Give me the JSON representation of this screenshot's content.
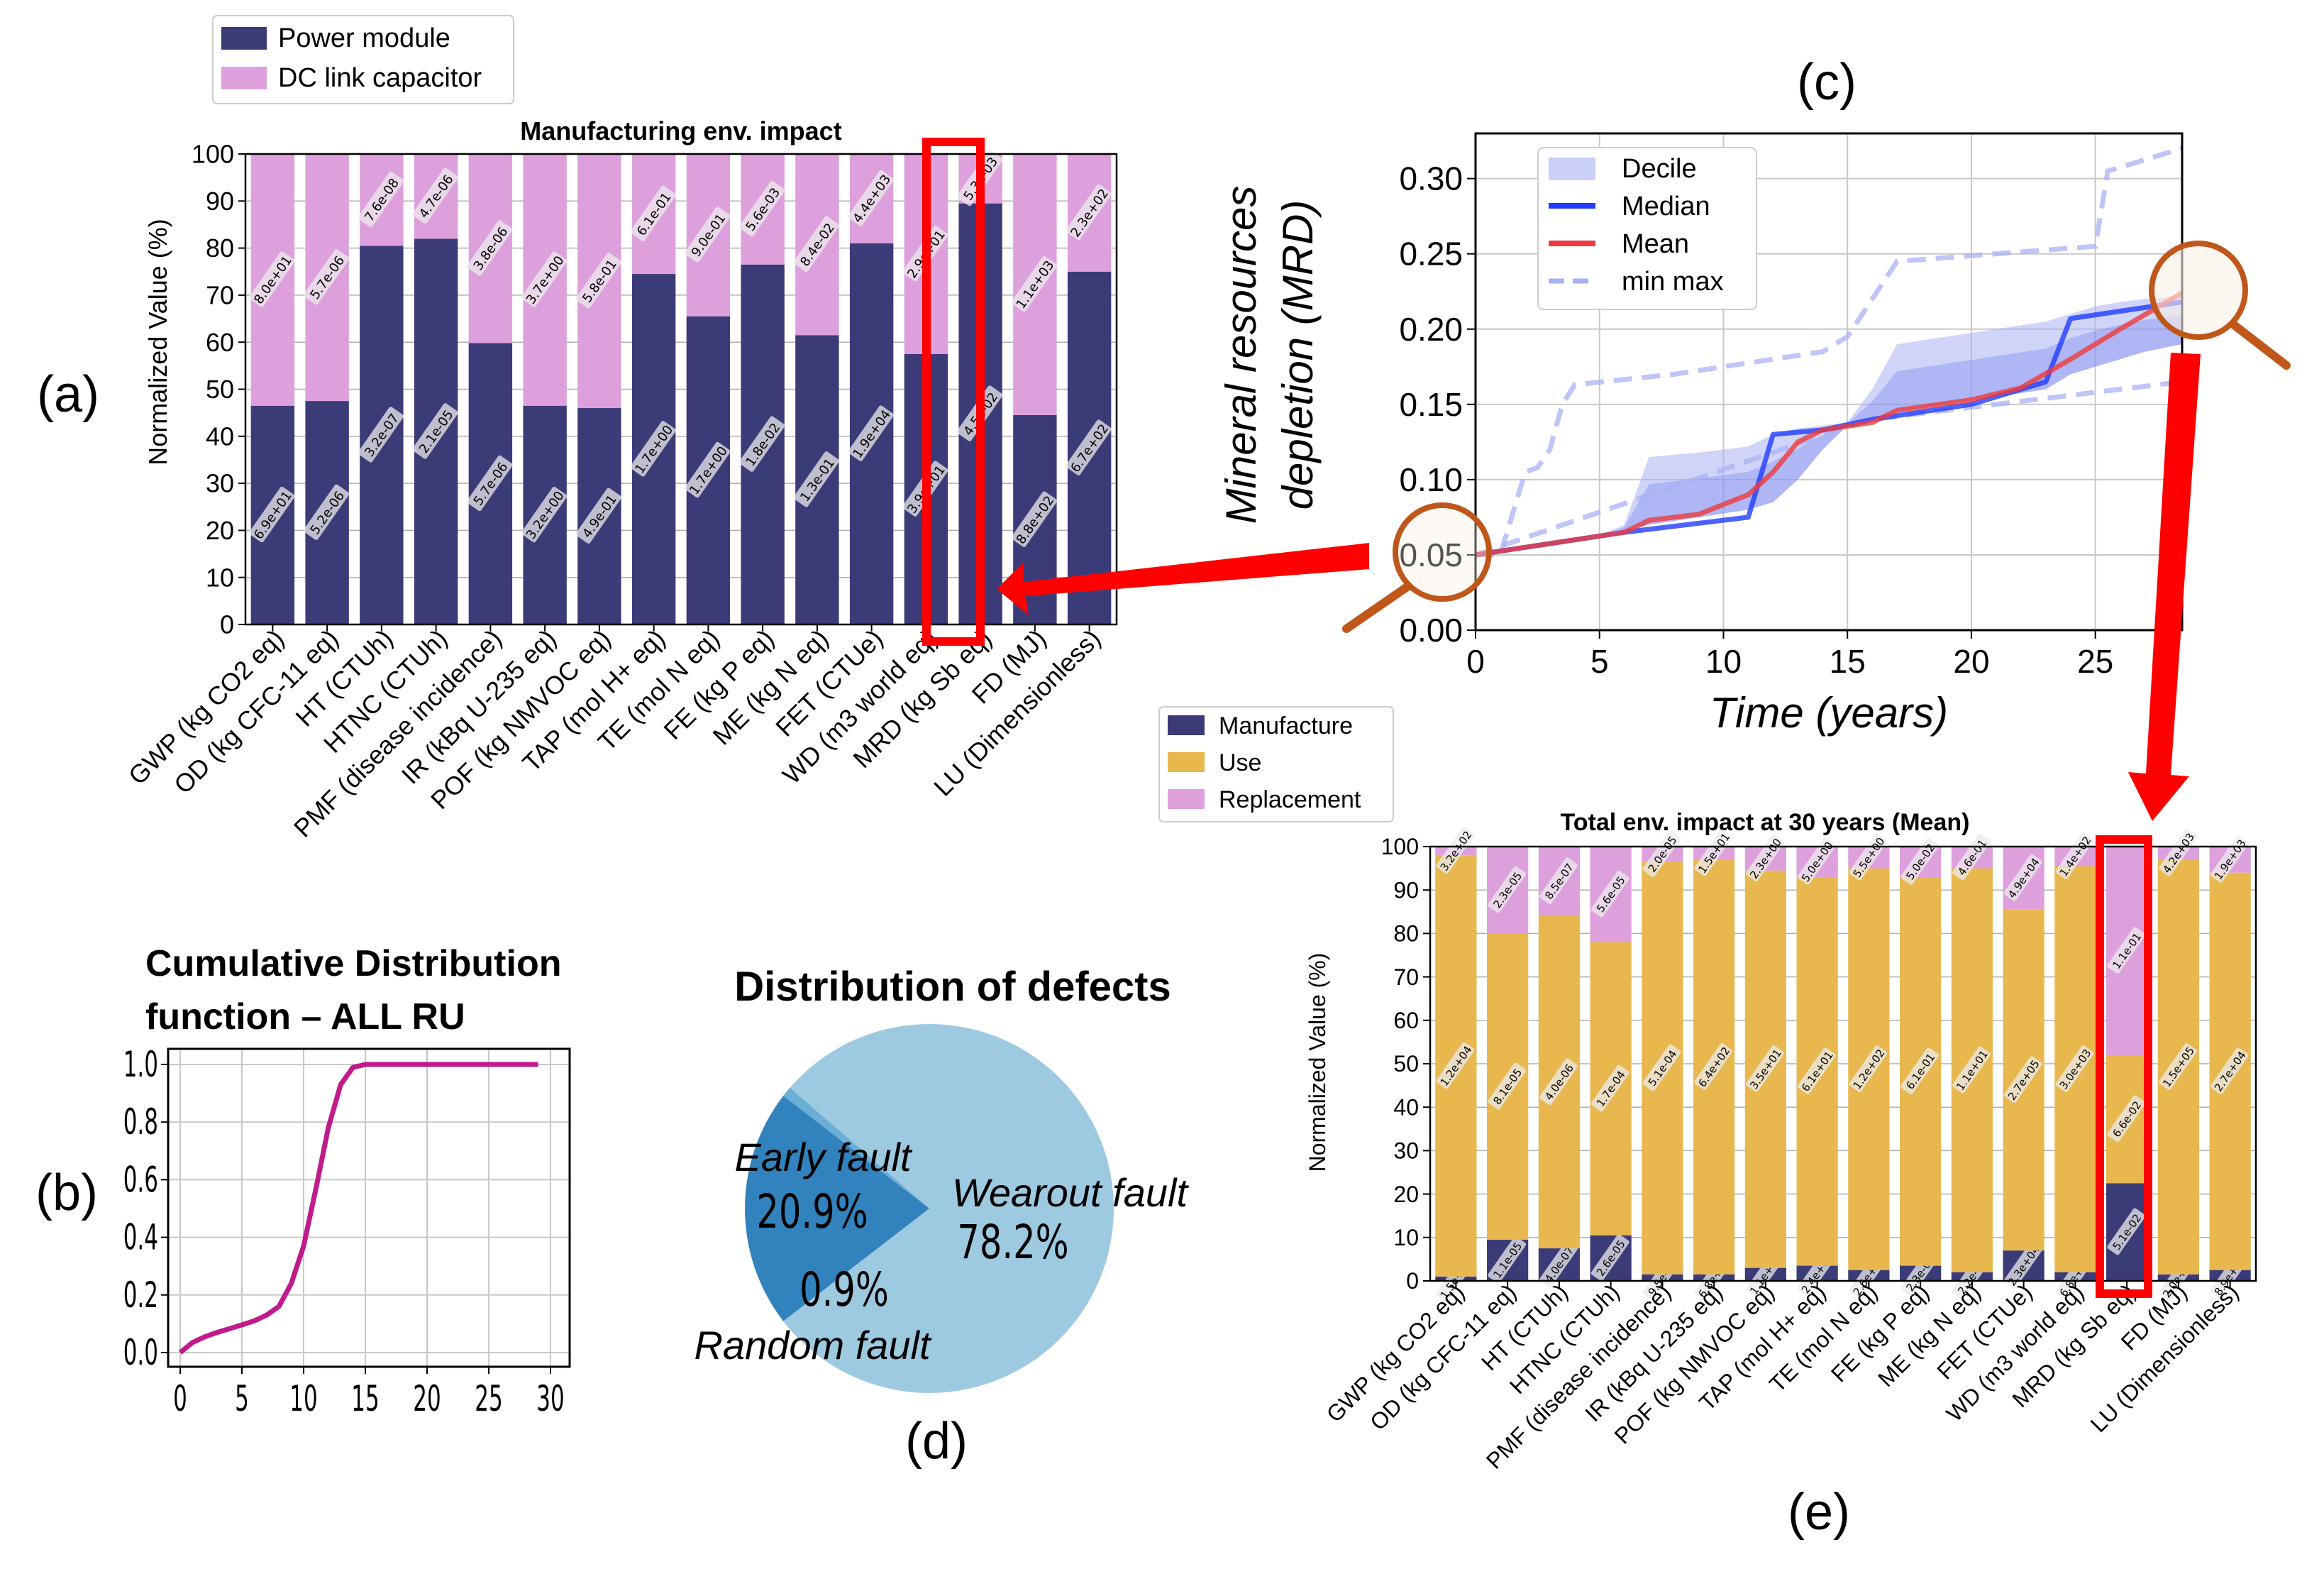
{
  "panel_labels": {
    "a": "(a)",
    "b": "(b)",
    "c": "(c)",
    "d": "(d)",
    "e": "(e)"
  },
  "colors": {
    "navy": "#3b3b78",
    "pink": "#dda0dd",
    "yellow": "#e8b84f",
    "blue": "#1f3cff",
    "red": "#ee3b3b",
    "decile": "#a9b1f4",
    "magenta": "#c01a8c",
    "pie_light": "#9ecae1",
    "pie_dark": "#3182bd",
    "highlight_red": "#ff0000",
    "magnifier": "#c0571a"
  },
  "chart_data": [
    {
      "id": "a",
      "type": "bar",
      "stacked": true,
      "title": "Manufacturing env. impact",
      "ylabel": "Normalized Value (%)",
      "ylim": [
        0,
        100
      ],
      "yticks": [
        0,
        10,
        20,
        30,
        40,
        50,
        60,
        70,
        80,
        90,
        100
      ],
      "grid": true,
      "legend_position": "top-left (outside plot)",
      "categories": [
        "GWP (kg CO2 eq)",
        "OD (kg CFC-11 eq)",
        "HT (CTUh)",
        "HTNC (CTUh)",
        "PMF (disease incidence)",
        "IR (kBq U-235 eq)",
        "POF (kg NMVOC eq)",
        "TAP (mol H+ eq)",
        "TE (mol N eq)",
        "FE (kg P eq)",
        "ME (kg N eq)",
        "FET (CTUe)",
        "WD (m3 world eq)",
        "MRD (kg Sb eq)",
        "FD (MJ)",
        "LU (Dimensionless)"
      ],
      "highlight_category": "MRD (kg Sb eq)",
      "series": [
        {
          "name": "Power module",
          "values": [
            46.5,
            47.5,
            80.5,
            82,
            59.8,
            46.5,
            46,
            74.5,
            65.5,
            76.5,
            61.5,
            81,
            57.5,
            89.5,
            44.5,
            75
          ],
          "labels": [
            "6.9e+01",
            "5.2e-06",
            "3.2e-07",
            "2.1e-05",
            "5.7e-06",
            "3.2e+00",
            "4.9e-01",
            "1.7e+00",
            "1.7e+00",
            "1.8e-02",
            "1.3e-01",
            "1.9e+04",
            "3.9e+01",
            "4.5e-02",
            "8.8e+02",
            "6.7e+02"
          ]
        },
        {
          "name": "DC link capacitor",
          "values": [
            53.5,
            52.5,
            19.5,
            18,
            40.2,
            53.5,
            54,
            25.5,
            34.5,
            23.5,
            38.5,
            19,
            42.5,
            10.5,
            55.5,
            25
          ],
          "labels": [
            "8.0e+01",
            "5.7e-06",
            "7.6e-08",
            "4.7e-06",
            "3.8e-06",
            "3.7e+00",
            "5.8e-01",
            "6.1e-01",
            "9.0e-01",
            "5.6e-03",
            "8.4e-02",
            "4.4e+03",
            "2.9e+01",
            "5.3e-03",
            "1.1e+03",
            "2.3e+02"
          ]
        }
      ]
    },
    {
      "id": "b",
      "type": "line",
      "title": "Cumulative Distribution function – ALL RU",
      "xlim": [
        0,
        30
      ],
      "ylim": [
        0,
        1.0
      ],
      "xticks": [
        0,
        5,
        10,
        15,
        20,
        25,
        30
      ],
      "yticks": [
        0.0,
        0.2,
        0.4,
        0.6,
        0.8,
        1.0
      ],
      "ytick_labels": [
        "0.0",
        "0.2",
        "0.4",
        "0.6",
        "0.8",
        "1.0"
      ],
      "grid": true,
      "x": [
        0,
        1,
        2,
        3,
        4,
        5,
        6,
        7,
        8,
        9,
        10,
        11,
        12,
        13,
        14,
        15,
        16,
        18,
        20,
        25,
        29
      ],
      "y": [
        0.0,
        0.035,
        0.055,
        0.07,
        0.083,
        0.096,
        0.11,
        0.13,
        0.16,
        0.24,
        0.37,
        0.57,
        0.78,
        0.93,
        0.99,
        1.0,
        1.0,
        1.0,
        1.0,
        1.0,
        1.0
      ]
    },
    {
      "id": "c",
      "type": "line",
      "xlabel": "Time (years)",
      "ylabel": "Mineral resources depletion (MRD)",
      "xlim": [
        0,
        28.5
      ],
      "ylim": [
        0,
        0.33
      ],
      "xticks": [
        0,
        5,
        10,
        15,
        20,
        25
      ],
      "yticks": [
        0.0,
        0.05,
        0.1,
        0.15,
        0.2,
        0.25,
        0.3
      ],
      "ytick_labels": [
        "0.00",
        "0.05",
        "0.10",
        "0.15",
        "0.20",
        "0.25",
        "0.30"
      ],
      "grid": true,
      "legend_position": "upper-left",
      "series": [
        {
          "name": "Decile",
          "kind": "band",
          "x": [
            0,
            5,
            6,
            7,
            9,
            11,
            12,
            13,
            14,
            15,
            16,
            17,
            19,
            21,
            23,
            24,
            25,
            26,
            27,
            28.5
          ],
          "y_low": [
            0.05,
            0.063,
            0.066,
            0.07,
            0.075,
            0.08,
            0.085,
            0.1,
            0.12,
            0.136,
            0.14,
            0.145,
            0.15,
            0.155,
            0.16,
            0.17,
            0.175,
            0.18,
            0.185,
            0.19
          ],
          "y_high": [
            0.05,
            0.063,
            0.07,
            0.115,
            0.118,
            0.122,
            0.13,
            0.134,
            0.136,
            0.138,
            0.16,
            0.19,
            0.195,
            0.2,
            0.205,
            0.21,
            0.215,
            0.218,
            0.22,
            0.222
          ]
        },
        {
          "name": "Median",
          "x": [
            0,
            6,
            11,
            12,
            14,
            16,
            20,
            22,
            23,
            24,
            28.5
          ],
          "y": [
            0.05,
            0.065,
            0.075,
            0.13,
            0.133,
            0.14,
            0.15,
            0.16,
            0.165,
            0.207,
            0.218
          ]
        },
        {
          "name": "Mean",
          "x": [
            0,
            6,
            7,
            9,
            11,
            12,
            13,
            14,
            16,
            17,
            20,
            22,
            24,
            26,
            28.5
          ],
          "y": [
            0.05,
            0.065,
            0.073,
            0.077,
            0.09,
            0.105,
            0.125,
            0.133,
            0.138,
            0.146,
            0.153,
            0.161,
            0.18,
            0.2,
            0.224
          ]
        },
        {
          "name": "min max",
          "kind": "dashed",
          "min": {
            "x": [
              0,
              15,
              16,
              28.5
            ],
            "y": [
              0.05,
              0.135,
              0.14,
              0.165
            ]
          },
          "max": {
            "x": [
              0,
              1,
              2,
              2.5,
              3,
              3.5,
              4,
              8,
              14,
              15,
              16,
              17,
              25,
              25.5,
              28.5
            ],
            "y": [
              0.05,
              0.05,
              0.105,
              0.108,
              0.12,
              0.15,
              0.163,
              0.17,
              0.185,
              0.195,
              0.22,
              0.245,
              0.255,
              0.305,
              0.32
            ]
          }
        }
      ]
    },
    {
      "id": "d",
      "type": "pie",
      "title": "Distribution of defects",
      "slices": [
        {
          "label": "Wearout fault",
          "value": 78.2,
          "pct": "78.2%"
        },
        {
          "label": "Early fault",
          "value": 20.9,
          "pct": "20.9%"
        },
        {
          "label": "Random fault",
          "value": 0.9,
          "pct": "0.9%"
        }
      ]
    },
    {
      "id": "e",
      "type": "bar",
      "stacked": true,
      "title": "Total env. impact at 30 years (Mean)",
      "ylabel": "Normalized Value (%)",
      "ylim": [
        0,
        100
      ],
      "yticks": [
        0,
        10,
        20,
        30,
        40,
        50,
        60,
        70,
        80,
        90,
        100
      ],
      "grid": true,
      "legend_position": "top-left (outside plot)",
      "categories": [
        "GWP (kg CO2 eq)",
        "OD (kg CFC-11 eq)",
        "HT (CTUh)",
        "HTNC (CTUh)",
        "PMF (disease incidence)",
        "IR (kBq U-235 eq)",
        "POF (kg NMVOC eq)",
        "TAP (mol H+ eq)",
        "TE (mol N eq)",
        "FE (kg P eq)",
        "ME (kg N eq)",
        "FET (CTUe)",
        "WD (m3 world eq)",
        "MRD (kg Sb eq)",
        "FD (MJ)",
        "LU (Dimensionless)"
      ],
      "highlight_category": "MRD (kg Sb eq)",
      "series": [
        {
          "name": "Manufacture",
          "values": [
            1,
            9.5,
            7.5,
            10.5,
            1.5,
            1.5,
            3,
            3.5,
            2.5,
            3.5,
            2,
            7,
            2,
            22.5,
            1.5,
            2.5
          ],
          "labels": [
            "1.5e+02",
            "1.1e-05",
            "4.0e-07",
            "2.6e-05",
            "9.5e-06",
            "6.8e+00",
            "1.1e+00",
            "2.4e+00",
            "2.6e+00",
            "2.3e-02",
            "2.2e-01",
            "2.3e+04",
            "6.8e+01",
            "5.1e-02",
            "2.0e+03",
            "8.9e+02"
          ]
        },
        {
          "name": "Use",
          "values": [
            97,
            70.5,
            76.5,
            67.5,
            95,
            95.5,
            91.5,
            89.5,
            92.5,
            89.5,
            93,
            78.5,
            93.5,
            29.5,
            95.5,
            91.5
          ],
          "labels": [
            "1.2e+04",
            "8.1e-05",
            "4.0e-06",
            "1.7e-04",
            "5.1e-04",
            "6.4e+02",
            "3.5e+01",
            "6.1e+01",
            "1.2e+02",
            "6.1e-01",
            "1.1e+01",
            "2.7e+05",
            "3.0e+03",
            "6.6e-02",
            "1.5e+05",
            "2.7e+04"
          ]
        },
        {
          "name": "Replacement",
          "values": [
            2,
            20,
            16,
            22,
            3.5,
            3,
            5.5,
            7,
            5,
            7,
            5,
            14.5,
            4.5,
            48,
            3,
            6
          ],
          "labels": [
            "3.2e+02",
            "2.3e-05",
            "8.5e-07",
            "5.6e-05",
            "2.0e-05",
            "1.5e+01",
            "2.3e+00",
            "5.0e+00",
            "5.5e+00",
            "5.0e-02",
            "4.6e-01",
            "4.9e+04",
            "1.4e+02",
            "1.1e-01",
            "4.2e+03",
            "1.9e+03"
          ]
        }
      ]
    }
  ]
}
